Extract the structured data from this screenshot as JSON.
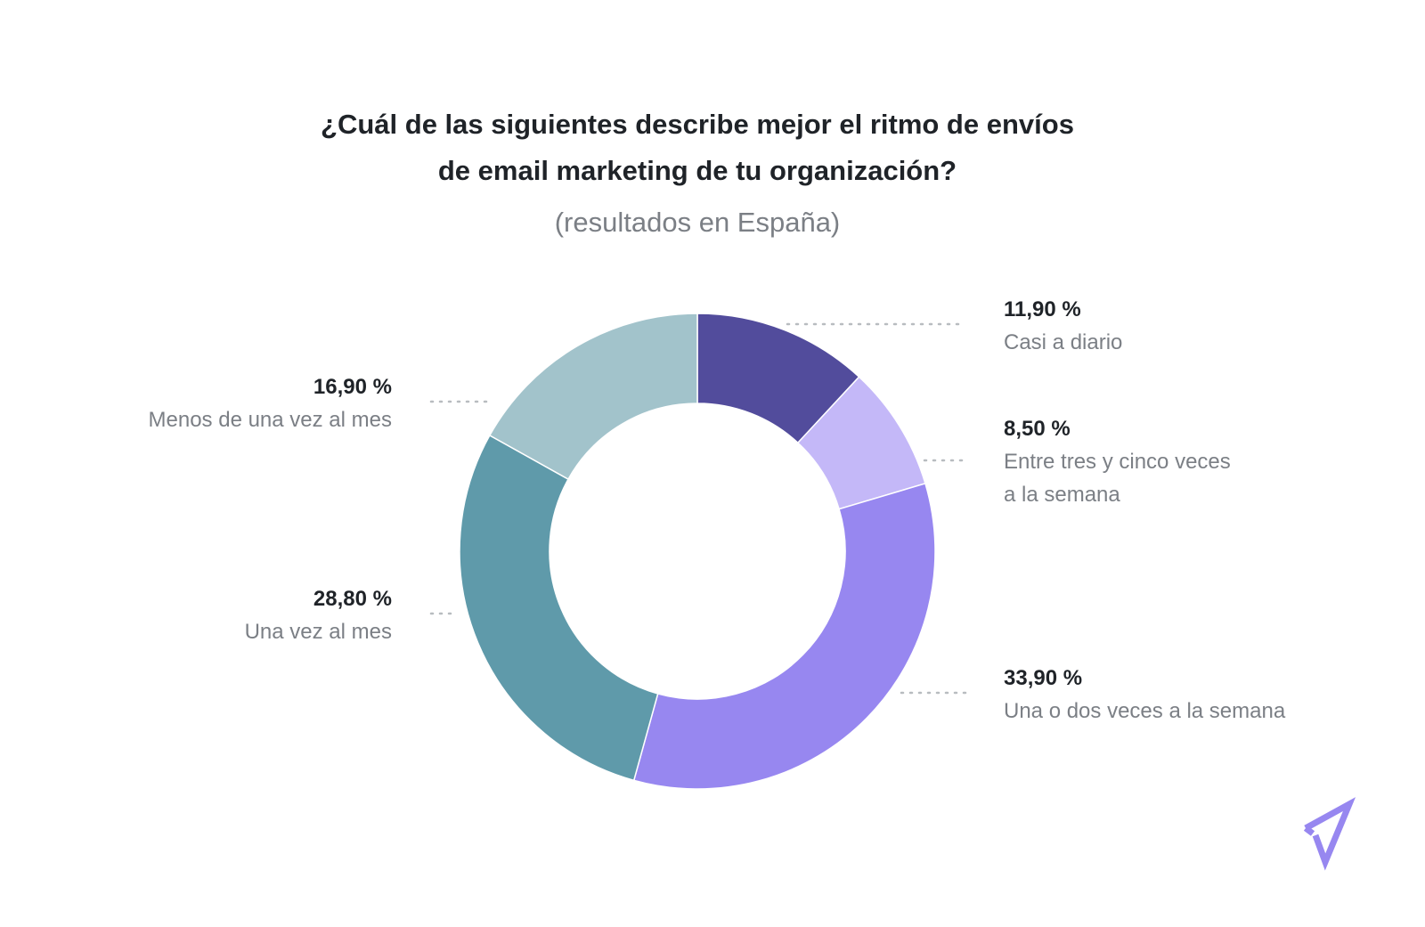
{
  "chart_data": {
    "type": "pie",
    "variant": "donut",
    "title_lines": [
      "¿Cuál de las siguientes describe mejor el ritmo de envíos",
      "de email marketing de tu organización?"
    ],
    "subtitle": "(resultados en España)",
    "slices": [
      {
        "label": "Casi a diario",
        "label_lines": [
          "Casi a diario"
        ],
        "value": 11.9,
        "value_text": "11,90 %",
        "color": "#524c9c"
      },
      {
        "label": "Entre tres y cinco veces a la semana",
        "label_lines": [
          "Entre tres y cinco veces",
          "a la semana"
        ],
        "value": 8.5,
        "value_text": "8,50 %",
        "color": "#c4b8f8"
      },
      {
        "label": "Una o dos veces a la semana",
        "label_lines": [
          "Una o dos veces a la semana"
        ],
        "value": 33.9,
        "value_text": "33,90 %",
        "color": "#9787f0"
      },
      {
        "label": "Una vez al mes",
        "label_lines": [
          "Una vez al mes"
        ],
        "value": 28.8,
        "value_text": "28,80 %",
        "color": "#5f9aaa"
      },
      {
        "label": "Menos de una vez al mes",
        "label_lines": [
          "Menos de una vez al mes"
        ],
        "value": 16.9,
        "value_text": "16,90 %",
        "color": "#a2c3cb"
      }
    ]
  },
  "logo": {
    "icon": "paper-plane-icon",
    "color": "#9787f0"
  }
}
